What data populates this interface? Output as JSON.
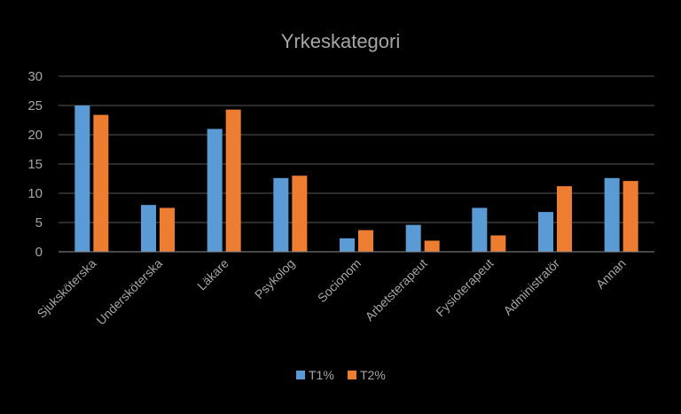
{
  "chart_data": {
    "type": "bar",
    "title": "Yrkeskategori",
    "categories": [
      "Sjuksköterska",
      "Undersköterska",
      "Läkare",
      "Psykolog",
      "Socionom",
      "Arbetsterapeut",
      "Fysioterapeut",
      "Administratör",
      "Annan"
    ],
    "series": [
      {
        "name": "T1%",
        "color": "#5b9bd5",
        "values": [
          25,
          8,
          21,
          12.6,
          2.3,
          4.6,
          7.5,
          6.8,
          12.6
        ]
      },
      {
        "name": "T2%",
        "color": "#ed7d31",
        "values": [
          23.4,
          7.5,
          24.3,
          13,
          3.7,
          1.9,
          2.8,
          11.2,
          12.1
        ]
      }
    ],
    "yticks": [
      "0",
      "5",
      "10",
      "15",
      "20",
      "25",
      "30"
    ],
    "ylim": [
      0,
      30
    ],
    "grid": true,
    "legend": "bottom"
  }
}
